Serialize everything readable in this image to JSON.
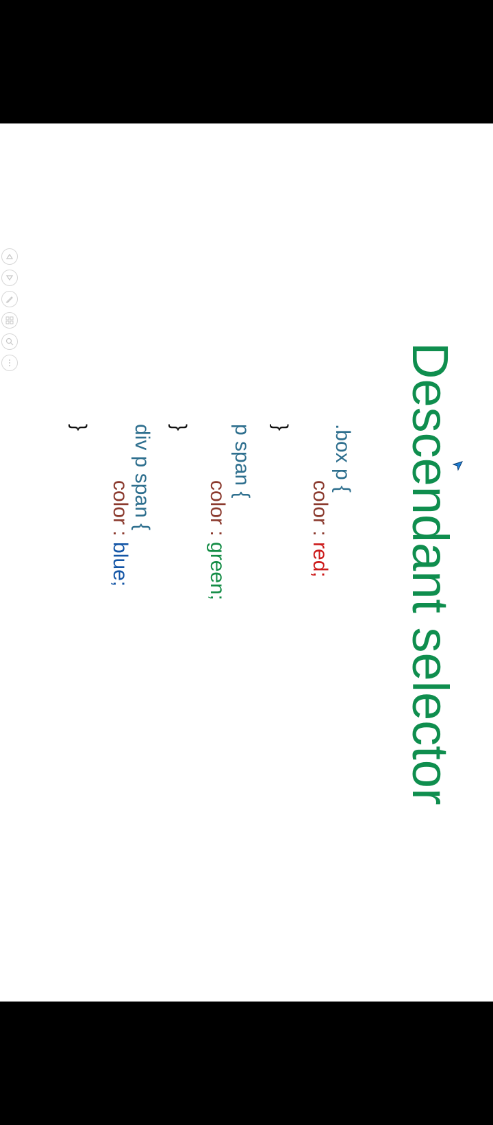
{
  "title": "Descendant selector",
  "code": {
    "rule1_selector": ".box p {",
    "rule1_prop": "color : ",
    "rule1_value": "red;",
    "rule1_close": "}",
    "rule2_selector": "p span {",
    "rule2_prop": "color : ",
    "rule2_value": "green;",
    "rule2_close": "}",
    "rule3_selector": "div p span {",
    "rule3_prop": "color : ",
    "rule3_value": "blue;",
    "rule3_close": "}"
  },
  "controls": [
    "previous-slide-icon",
    "next-slide-icon",
    "pen-icon",
    "slides-grid-icon",
    "zoom-icon",
    "more-options-icon"
  ]
}
